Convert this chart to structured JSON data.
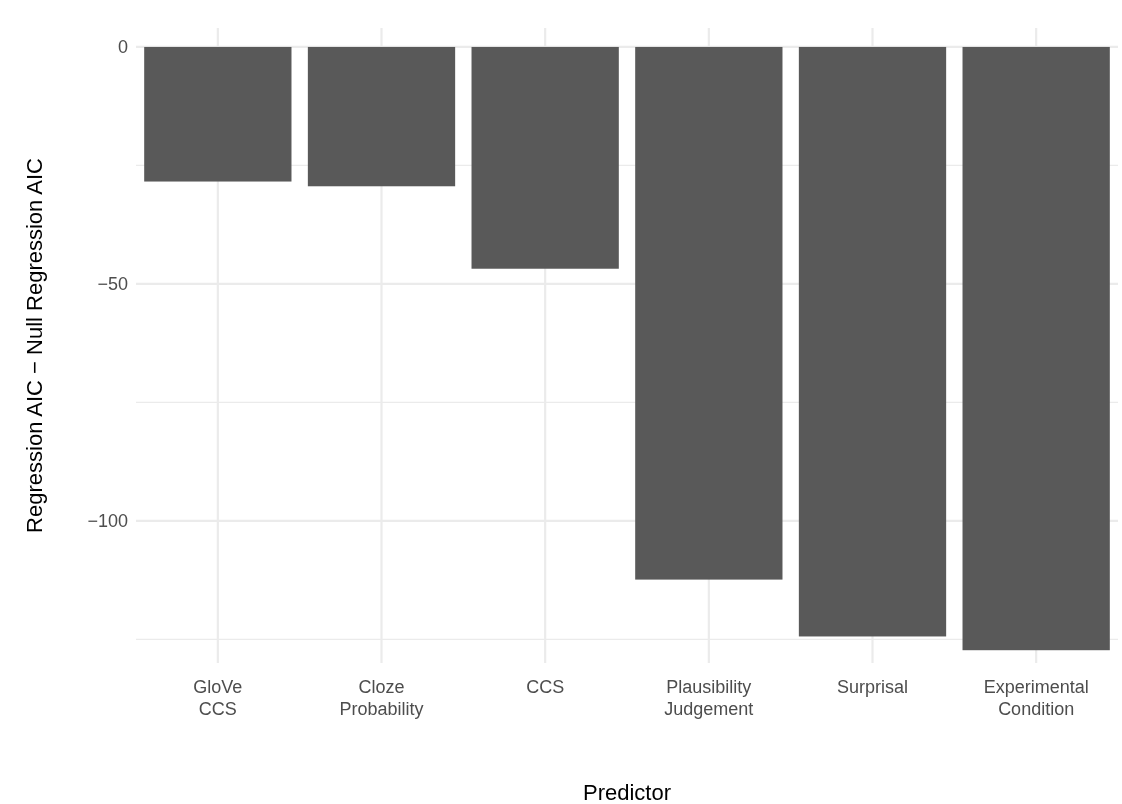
{
  "chart_data": {
    "type": "bar",
    "categories": [
      "GloVe\nCCS",
      "Cloze\nProbability",
      "CCS",
      "Plausibility\nJudgement",
      "Surprisal",
      "Experimental\nCondition"
    ],
    "values": [
      -28.4,
      -29.4,
      -46.8,
      -112.4,
      -124.4,
      -127.3
    ],
    "color": "#595959",
    "xlabel": "Predictor",
    "ylabel": "Regression AIC − Null Regression AIC",
    "ylim": [
      -130,
      4
    ],
    "yticks": [
      0,
      {
        "value": -25,
        "label": null
      },
      -50,
      {
        "value": -75,
        "label": null
      },
      -100,
      {
        "value": -125,
        "label": null
      }
    ],
    "grid": true
  }
}
